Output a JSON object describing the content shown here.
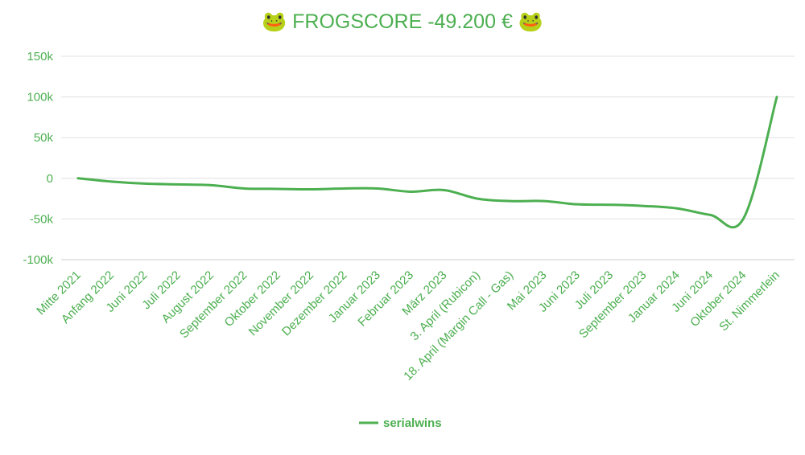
{
  "chart_data": {
    "type": "line",
    "title": "🐸 FROGSCORE -49.200 € 🐸",
    "categories": [
      "Mitte 2021",
      "Anfang 2022",
      "Juni 2022",
      "Juli 2022",
      "August 2022",
      "September 2022",
      "Oktober 2022",
      "November 2022",
      "Dezember 2022",
      "Januar 2023",
      "Februar 2023",
      "März 2023",
      "3. April (Rubicon)",
      "18. April (Margin Call - Gas)",
      "Mai 2023",
      "Juni 2023",
      "Juli 2023",
      "September 2023",
      "Januar 2024",
      "Juni 2024",
      "Oktober 2024",
      "St. Nimmerlein"
    ],
    "series": [
      {
        "name": "serialwins",
        "values": [
          0,
          -4000,
          -6500,
          -7500,
          -8500,
          -12500,
          -13000,
          -13500,
          -12500,
          -12500,
          -16500,
          -14500,
          -25000,
          -28000,
          -28000,
          -32000,
          -32500,
          -34000,
          -37000,
          -45000,
          -49200,
          100000
        ]
      }
    ],
    "y_ticks": [
      "150k",
      "100k",
      "50k",
      "0",
      "-50k",
      "-100k"
    ],
    "y_tick_values": [
      150000,
      100000,
      50000,
      0,
      -50000,
      -100000
    ],
    "ylim": [
      -100000,
      150000
    ],
    "grid": true,
    "legend_position": "bottom",
    "colors": {
      "line": "#4caf50",
      "text": "#4caf50",
      "grid": "#e0e0e0"
    }
  }
}
